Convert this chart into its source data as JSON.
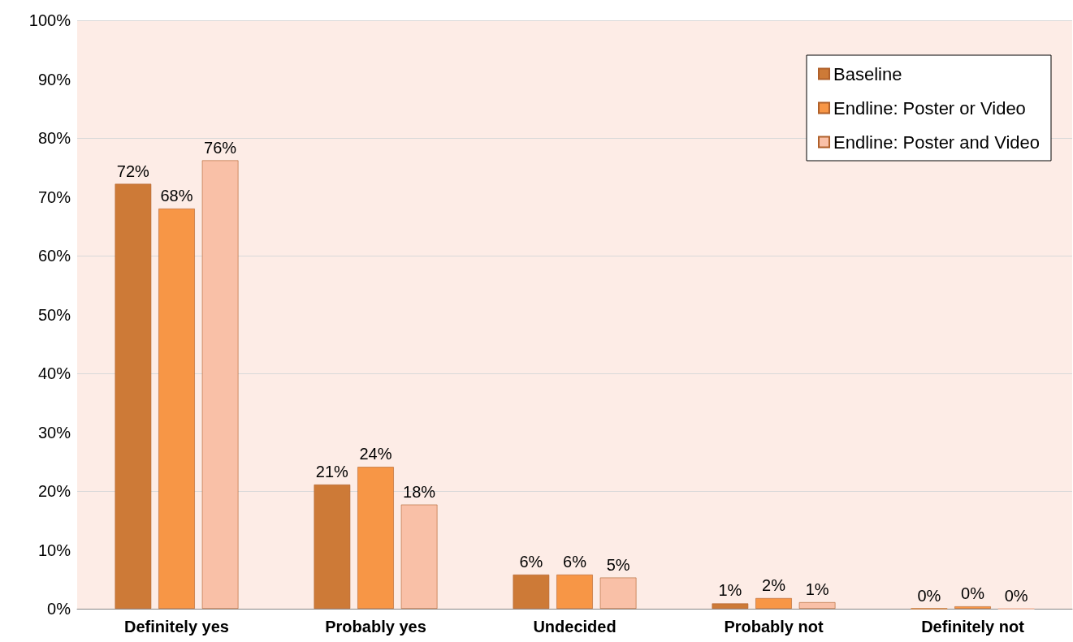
{
  "chart_data": {
    "type": "bar",
    "categories": [
      "Definitely yes",
      "Probably yes",
      "Undecided",
      "Probably not",
      "Definitely not"
    ],
    "series": [
      {
        "name": "Baseline",
        "color": "#cd7a37",
        "values": [
          72.2,
          21.1,
          5.8,
          0.9,
          0
        ],
        "value_labels": [
          "72%",
          "21%",
          "6%",
          "1%",
          "0%"
        ]
      },
      {
        "name": "Endline: Poster or Video",
        "color": "#f79646",
        "values": [
          68,
          24.1,
          5.8,
          1.8,
          0.4
        ],
        "value_labels": [
          "68%",
          "24%",
          "6%",
          "2%",
          "0%"
        ]
      },
      {
        "name": "Endline: Poster and Video",
        "color": "#f9c0a7",
        "values": [
          76.2,
          17.7,
          5.3,
          1.1,
          0
        ],
        "value_labels": [
          "76%",
          "18%",
          "5%",
          "1%",
          "0%"
        ]
      }
    ],
    "ylim": [
      0,
      100
    ],
    "yticks": [
      {
        "value": 0,
        "label": "0%"
      },
      {
        "value": 10,
        "label": "10%"
      },
      {
        "value": 20,
        "label": "20%"
      },
      {
        "value": 30,
        "label": "30%"
      },
      {
        "value": 40,
        "label": "40%"
      },
      {
        "value": 50,
        "label": "50%"
      },
      {
        "value": 60,
        "label": "60%"
      },
      {
        "value": 70,
        "label": "70%"
      },
      {
        "value": 80,
        "label": "80%"
      },
      {
        "value": 90,
        "label": "90%"
      },
      {
        "value": 100,
        "label": "100%"
      }
    ],
    "grid": "y",
    "legend": "top right"
  }
}
